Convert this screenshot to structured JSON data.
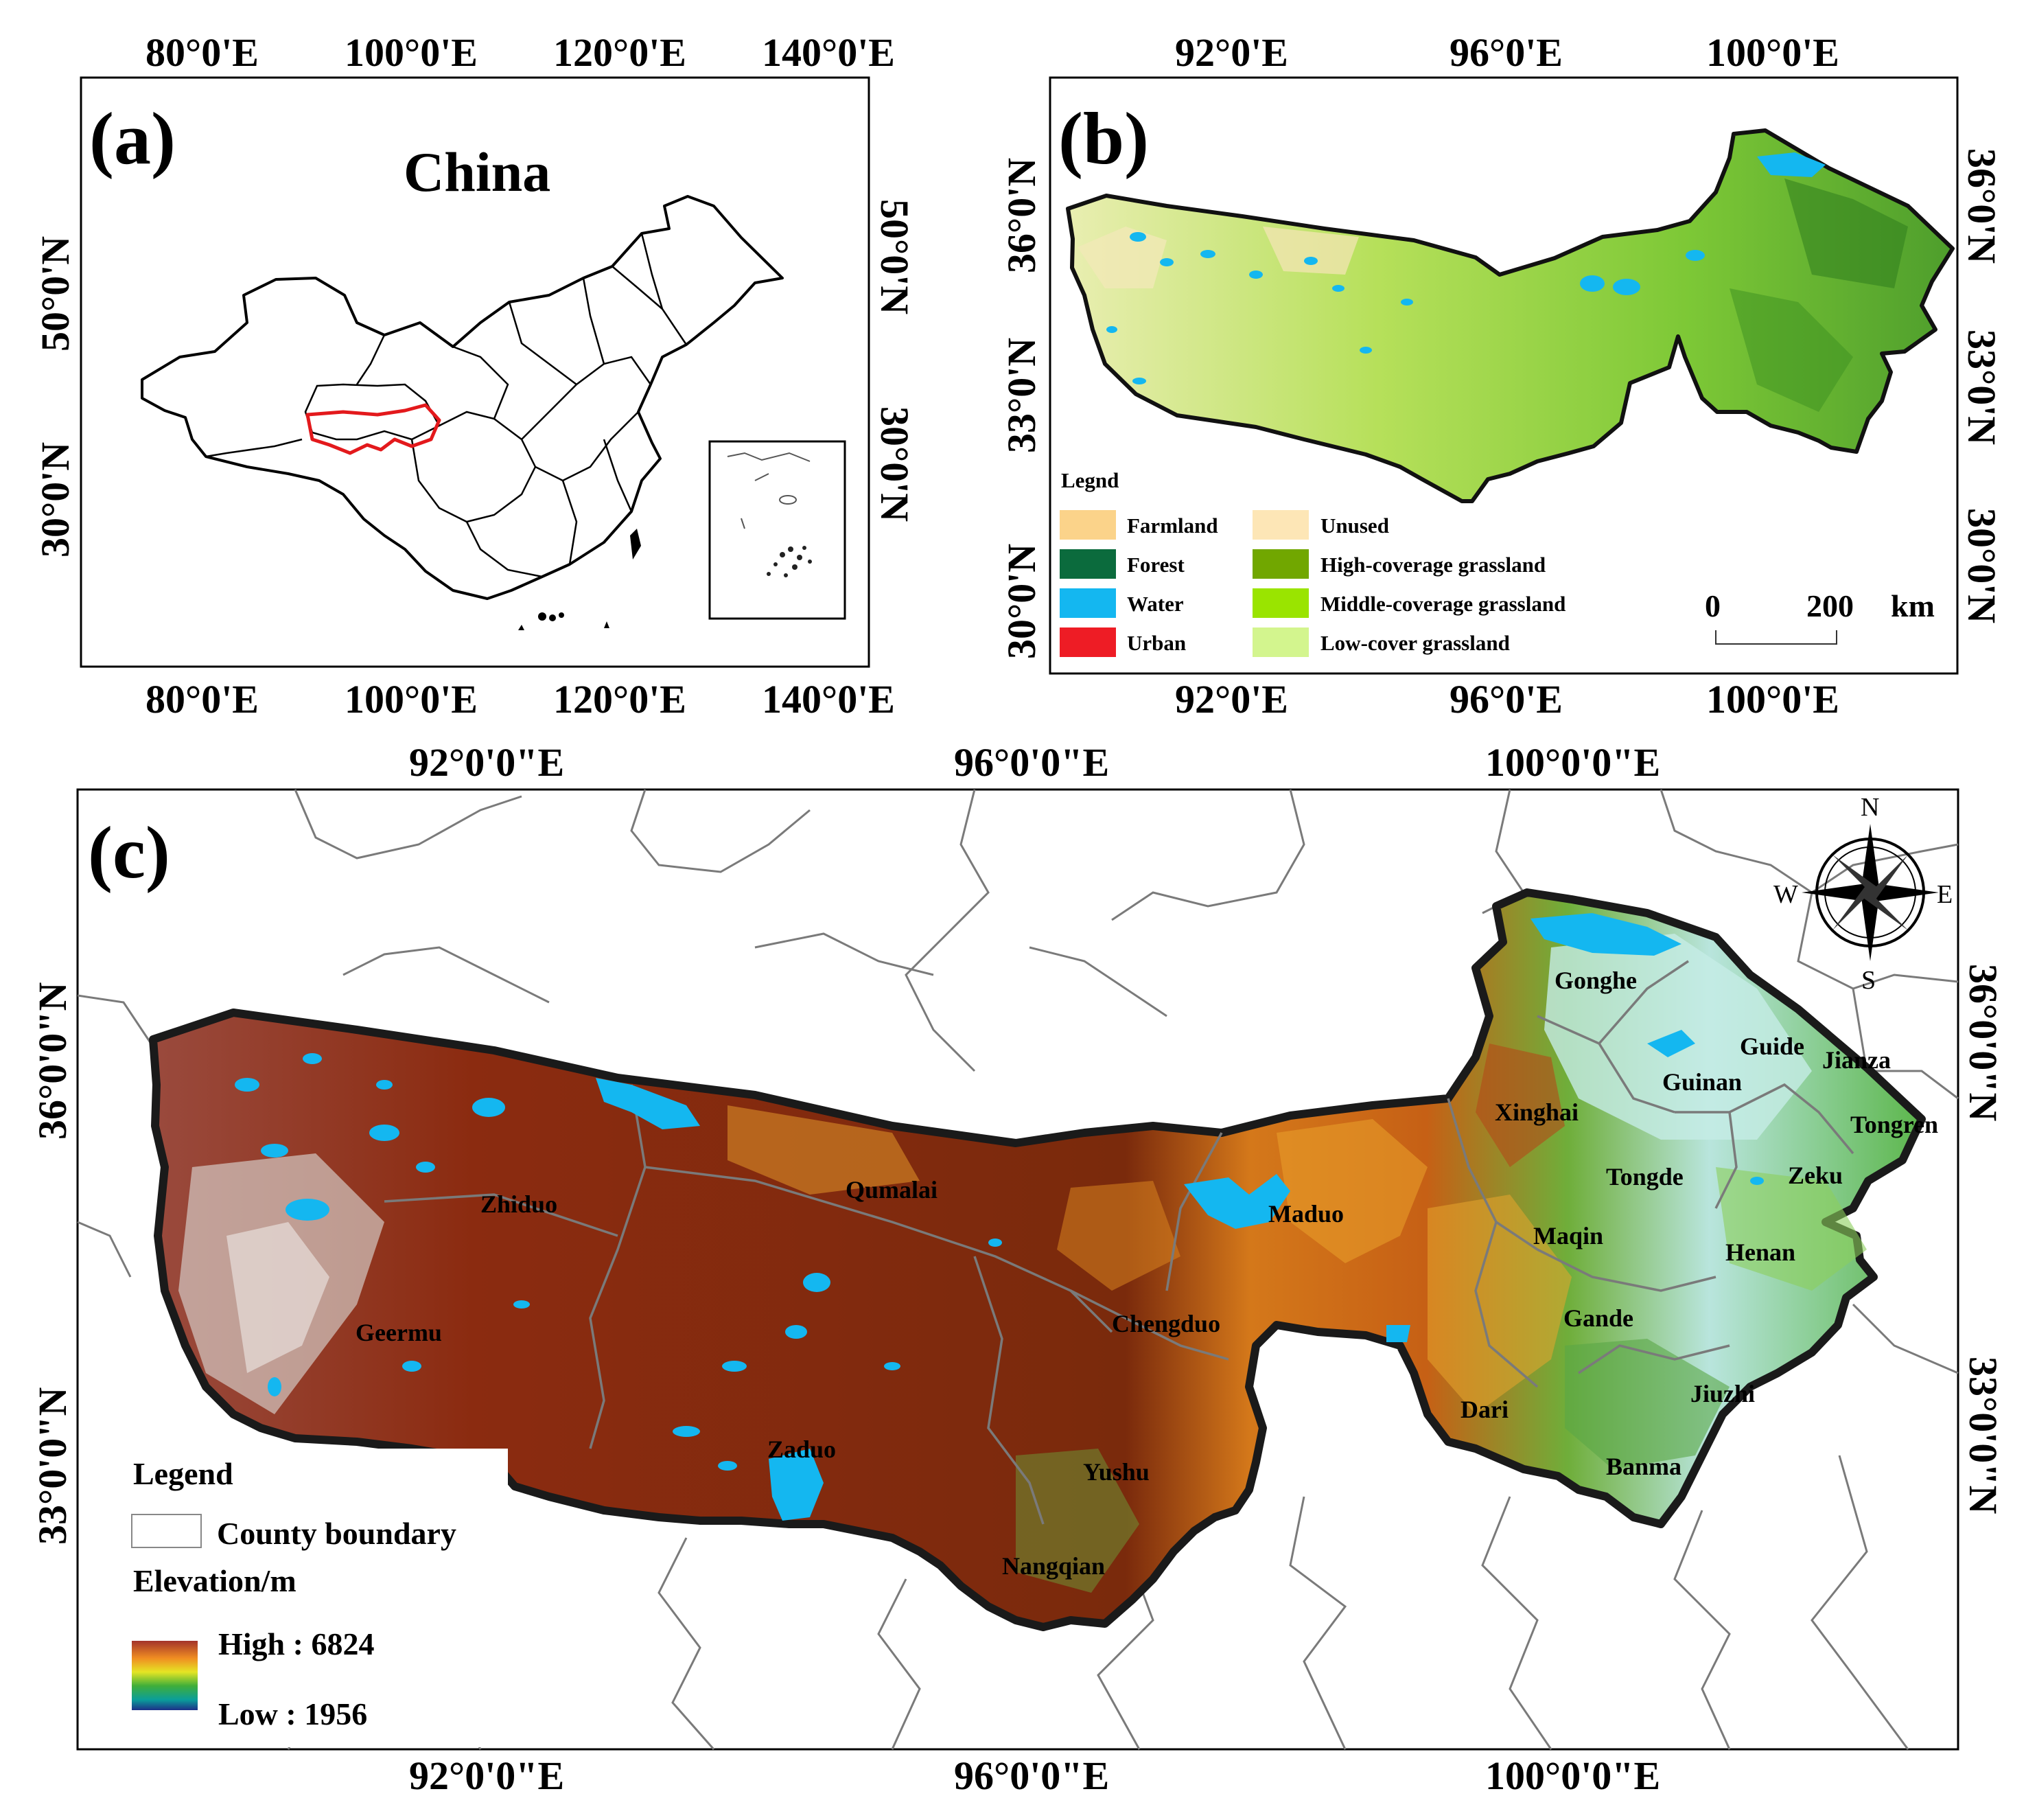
{
  "panel_a": {
    "letter": "(a)",
    "title": "China",
    "top_ticks": [
      "80°0'E",
      "100°0'E",
      "120°0'E",
      "140°0'E"
    ],
    "bottom_ticks": [
      "80°0'E",
      "100°0'E",
      "120°0'E",
      "140°0'E"
    ],
    "left_ticks": [
      "50°0'N",
      "30°0'N"
    ],
    "right_ticks": [
      "50°0'N",
      "30°0'N"
    ],
    "colors": {
      "boundary": "#000000",
      "study_area": "#e3191c"
    }
  },
  "panel_b": {
    "letter": "(b)",
    "top_ticks": [
      "92°0'E",
      "96°0'E",
      "100°0'E"
    ],
    "bottom_ticks": [
      "92°0'E",
      "96°0'E",
      "100°0'E"
    ],
    "left_ticks": [
      "36°0'N",
      "33°0'N",
      "30°0'N"
    ],
    "right_ticks": [
      "36°0'N",
      "33°0'N",
      "30°0'N"
    ],
    "legend_title": "Legnd",
    "legend_items": [
      {
        "label": "Farmland",
        "color": "#fbd38a"
      },
      {
        "label": "Forest",
        "color": "#0b6b3d"
      },
      {
        "label": "Water",
        "color": "#14b7f0"
      },
      {
        "label": "Urban",
        "color": "#ee1c25"
      },
      {
        "label": "Unused",
        "color": "#fde6b6"
      },
      {
        "label": "High-coverage grassland",
        "color": "#71a700"
      },
      {
        "label": "Middle-coverage grassland",
        "color": "#9ae400"
      },
      {
        "label": "Low-cover grassland",
        "color": "#d3f58e"
      }
    ],
    "scale_bar": {
      "start": "0",
      "end": "200",
      "unit": "km"
    }
  },
  "panel_c": {
    "letter": "(c)",
    "top_ticks": [
      "92°0'0\"E",
      "96°0'0\"E",
      "100°0'0\"E"
    ],
    "bottom_ticks": [
      "92°0'0\"E",
      "96°0'0\"E",
      "100°0'0\"E"
    ],
    "left_ticks": [
      "36°0'0\"N",
      "33°0'0\"N"
    ],
    "right_ticks": [
      "36°0'0\"N",
      "33°0'0\"N"
    ],
    "compass": {
      "n": "N",
      "s": "S",
      "e": "E",
      "w": "W"
    },
    "counties": [
      "Gonghe",
      "Guide",
      "Jianza",
      "Guinan",
      "Tongren",
      "Xinghai",
      "Tongde",
      "Zeku",
      "Maqin",
      "Henan",
      "Maduo",
      "Qumalai",
      "Zhiduo",
      "Geermu",
      "Chengduo",
      "Gande",
      "Jiuzhi",
      "Dari",
      "Banma",
      "Zaduo",
      "Yushu",
      "Nangqian"
    ],
    "legend": {
      "title": "Legend",
      "boundary_label": "County boundary",
      "elevation_title": "Elevation/m",
      "high_label": "High : 6824",
      "low_label": "Low : 1956"
    },
    "elevation": {
      "high": 6824,
      "low": 1956
    }
  }
}
